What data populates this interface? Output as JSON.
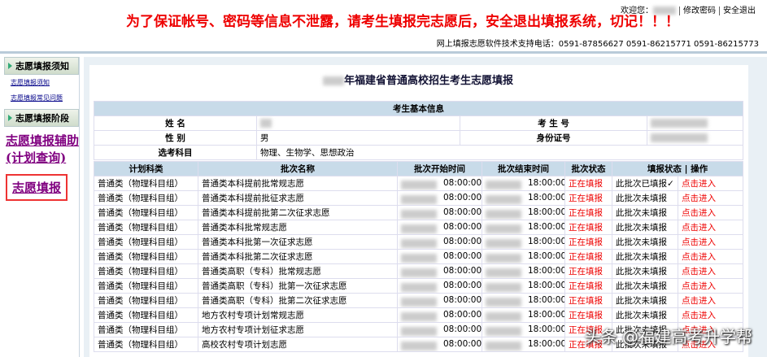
{
  "header": {
    "welcome": "欢迎您：",
    "links": [
      "修改密码",
      "安全退出"
    ],
    "warning": "为了保证帐号、密码等信息不泄露，请考生填报完志愿后，安全退出填报系统，切记！！！",
    "support": "网上填报志愿软件技术支持电话：0591-87856627 0591-86215771 0591-86215773"
  },
  "sidebar": {
    "sections": [
      {
        "title": "志愿填报须知",
        "links": [
          "志愿填报须知",
          "志愿填报常见问题"
        ]
      },
      {
        "title": "志愿填报阶段",
        "links": [
          "志愿填报辅助(计划查询)",
          "志愿填报"
        ]
      }
    ]
  },
  "main": {
    "title": "年福建省普通高校招生考生志愿填报",
    "info": {
      "heading": "考生基本信息",
      "name_label": "姓 名",
      "exam_no_label": "考 生 号",
      "gender_label": "性 别",
      "gender": "男",
      "id_label": "身份证号",
      "subjects_label": "选考科目",
      "subjects": "物理、生物学、思想政治"
    },
    "table": {
      "columns": [
        "计划科类",
        "批次名称",
        "批次开始时间",
        "批次结束时间",
        "批次状态",
        "填报状态 | 操作"
      ],
      "rows": [
        [
          "普通类（物理科目组）",
          "普通类本科提前批常规志愿",
          "08:00:00",
          "18:00:00",
          "正在填报",
          "此批次已填报✓",
          "点击进入"
        ],
        [
          "普通类（物理科目组）",
          "普通类本科提前批征求志愿",
          "08:00:00",
          "18:00:00",
          "正在填报",
          "此批次未填报",
          "点击进入"
        ],
        [
          "普通类（物理科目组）",
          "普通类本科提前批第二次征求志愿",
          "08:00:00",
          "18:00:00",
          "正在填报",
          "此批次未填报",
          "点击进入"
        ],
        [
          "普通类（物理科目组）",
          "普通类本科批常规志愿",
          "08:00:00",
          "18:00:00",
          "正在填报",
          "此批次未填报",
          "点击进入"
        ],
        [
          "普通类（物理科目组）",
          "普通类本科批第一次征求志愿",
          "08:00:00",
          "18:00:00",
          "正在填报",
          "此批次未填报",
          "点击进入"
        ],
        [
          "普通类（物理科目组）",
          "普通类本科批第二次征求志愿",
          "08:00:00",
          "18:00:00",
          "正在填报",
          "此批次未填报",
          "点击进入"
        ],
        [
          "普通类（物理科目组）",
          "普通类高职（专科）批常规志愿",
          "08:00:00",
          "18:00:00",
          "正在填报",
          "此批次未填报",
          "点击进入"
        ],
        [
          "普通类（物理科目组）",
          "普通类高职（专科）批第一次征求志愿",
          "08:00:00",
          "18:00:00",
          "正在填报",
          "此批次未填报",
          "点击进入"
        ],
        [
          "普通类（物理科目组）",
          "普通类高职（专科）批第二次征求志愿",
          "08:00:00",
          "18:00:00",
          "正在填报",
          "此批次未填报",
          "点击进入"
        ],
        [
          "普通类（物理科目组）",
          "地方农村专项计划常规志愿",
          "08:00:00",
          "18:00:00",
          "正在填报",
          "此批次未填报",
          "点击进入"
        ],
        [
          "普通类（物理科目组）",
          "地方农村专项计划征求志愿",
          "08:00:00",
          "18:00:00",
          "正在填报",
          "此批次未填报",
          "点击进入"
        ],
        [
          "普通类（物理科目组）",
          "高校农村专项计划志愿",
          "08:00:00",
          "18:00:00",
          "正在填报",
          "此批次未填报",
          "点击进入"
        ]
      ]
    }
  },
  "watermark": "头条 @福建高考升学帮"
}
